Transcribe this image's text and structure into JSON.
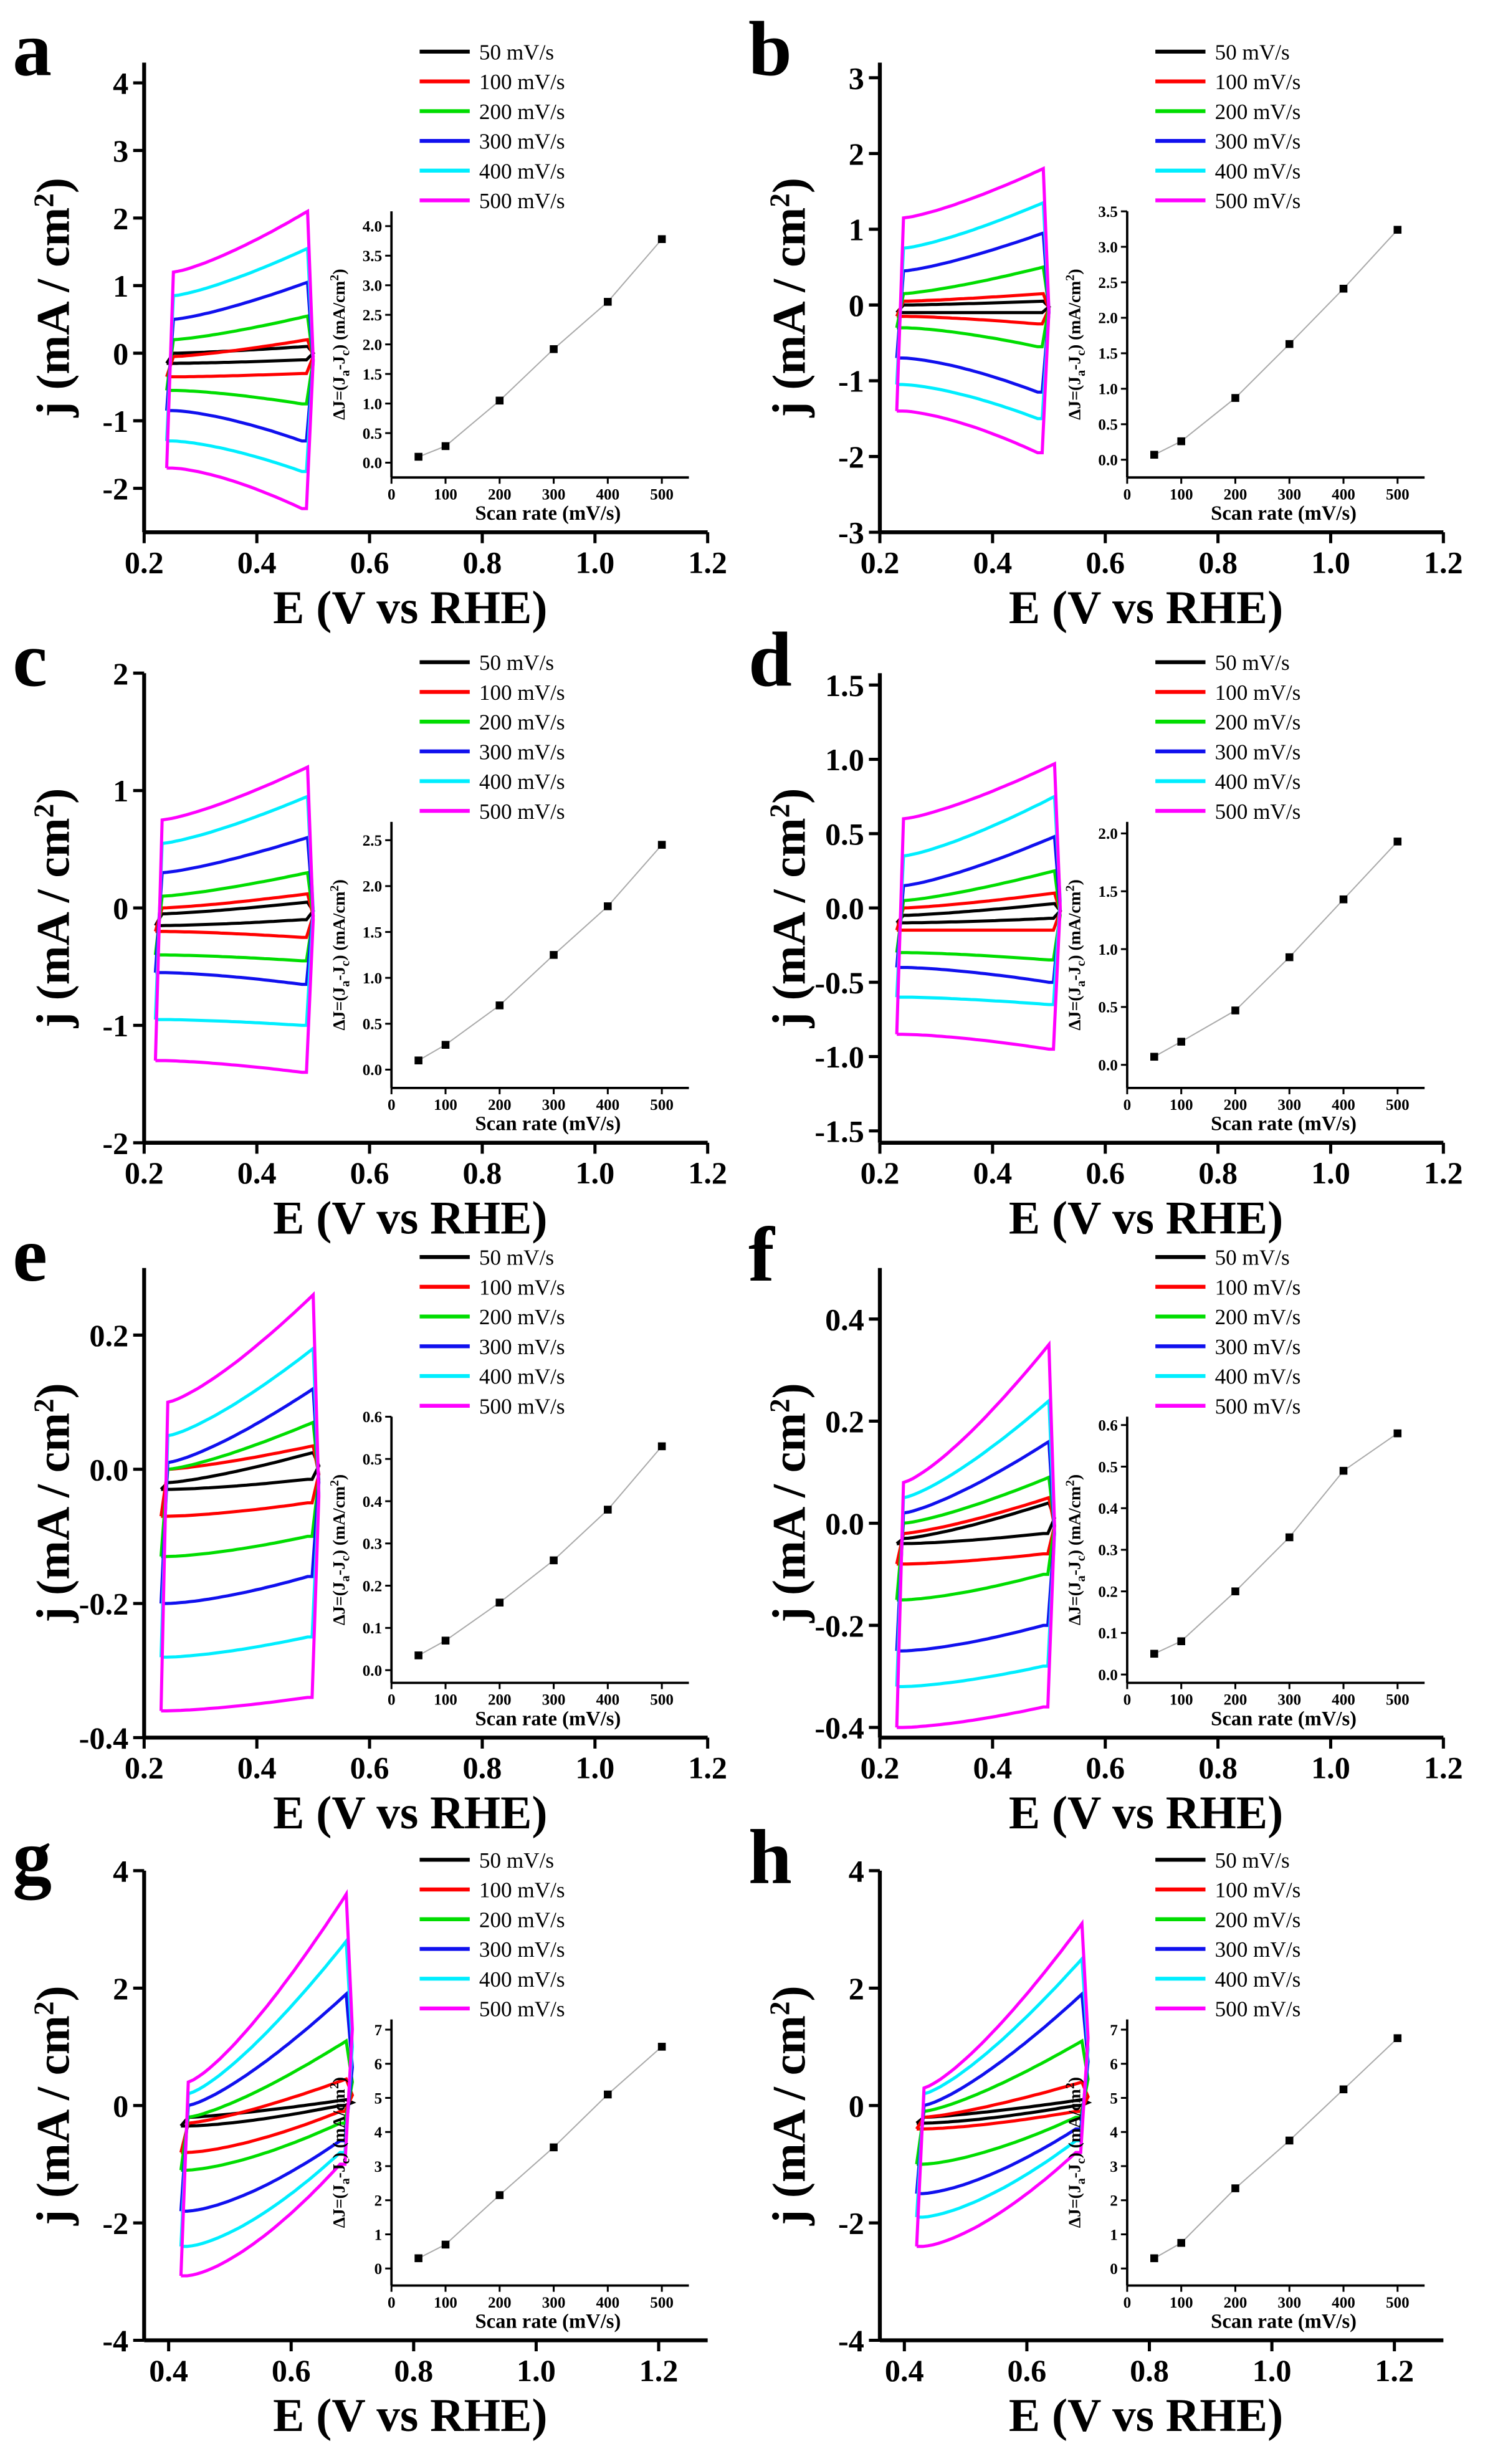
{
  "legend": [
    {
      "name": "50 mV/s",
      "color": "#000000"
    },
    {
      "name": "100 mV/s",
      "color": "#ff0000"
    },
    {
      "name": "200 mV/s",
      "color": "#00dd00"
    },
    {
      "name": "300 mV/s",
      "color": "#1010ee"
    },
    {
      "name": "400 mV/s",
      "color": "#00eeff"
    },
    {
      "name": "500 mV/s",
      "color": "#ff00ff"
    }
  ],
  "ylabel_parts": [
    "j (mA / cm",
    "2",
    ")"
  ],
  "xlabel": "E (V vs RHE)",
  "inset_xlabel": "Scan rate (mV/s)",
  "inset_ylabel_parts": [
    "ΔJ=(J",
    "a",
    "-J",
    "c",
    ") (mA/cm",
    "2",
    ")"
  ],
  "chart_data": [
    {
      "panel": "a",
      "type": "line",
      "xlim": [
        0.2,
        1.2
      ],
      "ylim": [
        -2.65,
        4.3
      ],
      "xticks": [
        "0.2",
        "0.4",
        "0.6",
        "0.8",
        "1.0",
        "1.2"
      ],
      "yticks": [
        "-2",
        "-1",
        "0",
        "1",
        "2",
        "3",
        "4"
      ],
      "E_range": [
        0.24,
        0.5
      ],
      "cv_ja_start_end_jc_start_end": [
        [
          0.0,
          0.1,
          -0.15,
          -0.1
        ],
        [
          -0.05,
          0.2,
          -0.35,
          -0.3
        ],
        [
          0.2,
          0.55,
          -0.55,
          -0.75
        ],
        [
          0.5,
          1.05,
          -0.85,
          -1.3
        ],
        [
          0.85,
          1.55,
          -1.3,
          -1.75
        ],
        [
          1.2,
          2.1,
          -1.7,
          -2.3
        ]
      ],
      "inset": {
        "type": "line",
        "x": [
          50,
          100,
          200,
          300,
          400,
          500
        ],
        "y": [
          0.1,
          0.28,
          1.05,
          1.92,
          2.72,
          3.78
        ],
        "xlim": [
          0,
          550
        ],
        "ylim": [
          -0.25,
          4.25
        ],
        "xticks": [
          "0",
          "100",
          "200",
          "300",
          "400",
          "500"
        ],
        "yticks": [
          "0.0",
          "0.5",
          "1.0",
          "1.5",
          "2.0",
          "2.5",
          "3.0",
          "3.5",
          "4.0"
        ]
      }
    },
    {
      "panel": "b",
      "type": "line",
      "xlim": [
        0.2,
        1.2
      ],
      "ylim": [
        -3.0,
        3.2
      ],
      "xticks": [
        "0.2",
        "0.4",
        "0.6",
        "0.8",
        "1.0",
        "1.2"
      ],
      "yticks": [
        "-3",
        "-2",
        "-1",
        "0",
        "1",
        "2",
        "3"
      ],
      "E_range": [
        0.23,
        0.5
      ],
      "cv_ja_start_end_jc_start_end": [
        [
          0.0,
          0.05,
          -0.1,
          -0.1
        ],
        [
          0.05,
          0.15,
          -0.15,
          -0.25
        ],
        [
          0.15,
          0.5,
          -0.3,
          -0.55
        ],
        [
          0.45,
          0.95,
          -0.7,
          -1.15
        ],
        [
          0.75,
          1.35,
          -1.05,
          -1.5
        ],
        [
          1.15,
          1.8,
          -1.4,
          -1.95
        ]
      ],
      "inset": {
        "type": "line",
        "x": [
          50,
          100,
          200,
          300,
          400,
          500
        ],
        "y": [
          0.07,
          0.26,
          0.87,
          1.63,
          2.41,
          3.24
        ],
        "xlim": [
          0,
          550
        ],
        "ylim": [
          -0.25,
          3.5
        ],
        "xticks": [
          "0",
          "100",
          "200",
          "300",
          "400",
          "500"
        ],
        "yticks": [
          "0.0",
          "0.5",
          "1.0",
          "1.5",
          "2.0",
          "2.5",
          "3.0",
          "3.5"
        ]
      }
    },
    {
      "panel": "c",
      "type": "line",
      "xlim": [
        0.2,
        1.2
      ],
      "ylim": [
        -2.0,
        2.0
      ],
      "xticks": [
        "0.2",
        "0.4",
        "0.6",
        "0.8",
        "1.0",
        "1.2"
      ],
      "yticks": [
        "-2",
        "-1",
        "0",
        "1",
        "2"
      ],
      "E_range": [
        0.22,
        0.5
      ],
      "cv_ja_start_end_jc_start_end": [
        [
          -0.05,
          0.05,
          -0.15,
          -0.1
        ],
        [
          0.0,
          0.12,
          -0.2,
          -0.25
        ],
        [
          0.1,
          0.3,
          -0.4,
          -0.45
        ],
        [
          0.3,
          0.6,
          -0.55,
          -0.65
        ],
        [
          0.55,
          0.95,
          -0.95,
          -1.0
        ],
        [
          0.75,
          1.2,
          -1.3,
          -1.4
        ]
      ],
      "inset": {
        "type": "line",
        "x": [
          50,
          100,
          200,
          300,
          400,
          500
        ],
        "y": [
          0.1,
          0.27,
          0.7,
          1.25,
          1.78,
          2.45
        ],
        "xlim": [
          0,
          550
        ],
        "ylim": [
          -0.2,
          2.7
        ],
        "xticks": [
          "0",
          "100",
          "200",
          "300",
          "400",
          "500"
        ],
        "yticks": [
          "0.0",
          "0.5",
          "1.0",
          "1.5",
          "2.0",
          "2.5"
        ]
      }
    },
    {
      "panel": "d",
      "type": "line",
      "xlim": [
        0.2,
        1.2
      ],
      "ylim": [
        -1.58,
        1.58
      ],
      "xticks": [
        "0.2",
        "0.4",
        "0.6",
        "0.8",
        "1.0",
        "1.2"
      ],
      "yticks": [
        "-1.5",
        "-1.0",
        "-0.5",
        "0.0",
        "0.5",
        "1.0",
        "1.5"
      ],
      "E_range": [
        0.23,
        0.52
      ],
      "cv_ja_start_end_jc_start_end": [
        [
          -0.05,
          0.03,
          -0.1,
          -0.07
        ],
        [
          0.0,
          0.1,
          -0.15,
          -0.15
        ],
        [
          0.05,
          0.25,
          -0.3,
          -0.35
        ],
        [
          0.15,
          0.48,
          -0.4,
          -0.5
        ],
        [
          0.35,
          0.75,
          -0.6,
          -0.65
        ],
        [
          0.6,
          0.97,
          -0.85,
          -0.95
        ]
      ],
      "inset": {
        "type": "line",
        "x": [
          50,
          100,
          200,
          300,
          400,
          500
        ],
        "y": [
          0.07,
          0.2,
          0.47,
          0.93,
          1.43,
          1.93
        ],
        "xlim": [
          0,
          550
        ],
        "ylim": [
          -0.2,
          2.1
        ],
        "xticks": [
          "0",
          "100",
          "200",
          "300",
          "400",
          "500"
        ],
        "yticks": [
          "0.0",
          "0.5",
          "1.0",
          "1.5",
          "2.0"
        ]
      }
    },
    {
      "panel": "e",
      "type": "line",
      "xlim": [
        0.2,
        1.2
      ],
      "ylim": [
        -0.4,
        0.3
      ],
      "xticks": [
        "0.2",
        "0.4",
        "0.6",
        "0.8",
        "1.0",
        "1.2"
      ],
      "yticks": [
        "-0.4",
        "-0.2",
        "0.0",
        "0.2"
      ],
      "E_range": [
        0.23,
        0.51
      ],
      "cv_ja_start_end_jc_start_end": [
        [
          -0.02,
          0.025,
          -0.03,
          -0.015
        ],
        [
          0.0,
          0.035,
          -0.07,
          -0.05
        ],
        [
          0.0,
          0.07,
          -0.13,
          -0.1
        ],
        [
          0.01,
          0.12,
          -0.2,
          -0.16
        ],
        [
          0.05,
          0.18,
          -0.28,
          -0.25
        ],
        [
          0.1,
          0.26,
          -0.36,
          -0.34
        ]
      ],
      "inset": {
        "type": "line",
        "x": [
          50,
          100,
          200,
          300,
          400,
          500
        ],
        "y": [
          0.035,
          0.07,
          0.16,
          0.26,
          0.38,
          0.53
        ],
        "xlim": [
          0,
          550
        ],
        "ylim": [
          -0.03,
          0.6
        ],
        "xticks": [
          "0",
          "100",
          "200",
          "300",
          "400",
          "500"
        ],
        "yticks": [
          "0.0",
          "0.1",
          "0.2",
          "0.3",
          "0.4",
          "0.5",
          "0.6"
        ]
      }
    },
    {
      "panel": "f",
      "type": "line",
      "xlim": [
        0.2,
        1.2
      ],
      "ylim": [
        -0.42,
        0.5
      ],
      "xticks": [
        "0.2",
        "0.4",
        "0.6",
        "0.8",
        "1.0",
        "1.2"
      ],
      "yticks": [
        "-0.4",
        "-0.2",
        "0.0",
        "0.2",
        "0.4"
      ],
      "E_range": [
        0.23,
        0.51
      ],
      "cv_ja_start_end_jc_start_end": [
        [
          -0.03,
          0.04,
          -0.04,
          -0.02
        ],
        [
          -0.02,
          0.05,
          -0.08,
          -0.06
        ],
        [
          0.0,
          0.09,
          -0.15,
          -0.1
        ],
        [
          0.02,
          0.16,
          -0.25,
          -0.2
        ],
        [
          0.05,
          0.24,
          -0.32,
          -0.28
        ],
        [
          0.08,
          0.35,
          -0.4,
          -0.36
        ]
      ],
      "inset": {
        "type": "line",
        "x": [
          50,
          100,
          200,
          300,
          400,
          500
        ],
        "y": [
          0.05,
          0.08,
          0.2,
          0.33,
          0.49,
          0.58
        ],
        "xlim": [
          0,
          550
        ],
        "ylim": [
          -0.02,
          0.62
        ],
        "xticks": [
          "0",
          "100",
          "200",
          "300",
          "400",
          "500"
        ],
        "yticks": [
          "0.0",
          "0.1",
          "0.2",
          "0.3",
          "0.4",
          "0.5",
          "0.6"
        ]
      }
    },
    {
      "panel": "g",
      "type": "line",
      "xlim": [
        0.36,
        1.28
      ],
      "ylim": [
        -4.0,
        4.0
      ],
      "xticks": [
        "0.4",
        "0.6",
        "0.8",
        "1.0",
        "1.2"
      ],
      "yticks": [
        "-4",
        "-2",
        "0",
        "2",
        "4"
      ],
      "E_range": [
        0.42,
        0.7
      ],
      "cv_ja_start_end_jc_start_end": [
        [
          -0.2,
          0.1,
          -0.35,
          0.0
        ],
        [
          -0.3,
          0.45,
          -0.8,
          -0.1
        ],
        [
          -0.2,
          1.1,
          -1.1,
          -0.3
        ],
        [
          0.0,
          1.9,
          -1.8,
          -0.6
        ],
        [
          0.2,
          2.8,
          -2.4,
          -0.8
        ],
        [
          0.4,
          3.6,
          -2.9,
          -1.0
        ]
      ],
      "inset": {
        "type": "line",
        "x": [
          50,
          100,
          200,
          300,
          400,
          500
        ],
        "y": [
          0.3,
          0.7,
          2.15,
          3.55,
          5.1,
          6.5
        ],
        "xlim": [
          0,
          550
        ],
        "ylim": [
          -0.5,
          7.3
        ],
        "xticks": [
          "0",
          "100",
          "200",
          "300",
          "400",
          "500"
        ],
        "yticks": [
          "0",
          "1",
          "2",
          "3",
          "4",
          "5",
          "6",
          "7"
        ]
      }
    },
    {
      "panel": "h",
      "type": "line",
      "xlim": [
        0.36,
        1.28
      ],
      "ylim": [
        -4.0,
        4.0
      ],
      "xticks": [
        "0.4",
        "0.6",
        "0.8",
        "1.0",
        "1.2"
      ],
      "yticks": [
        "-4",
        "-2",
        "0",
        "2",
        "4"
      ],
      "E_range": [
        0.42,
        0.7
      ],
      "cv_ja_start_end_jc_start_end": [
        [
          -0.2,
          0.1,
          -0.3,
          0.0
        ],
        [
          -0.2,
          0.4,
          -0.4,
          -0.1
        ],
        [
          -0.1,
          1.1,
          -1.0,
          -0.2
        ],
        [
          0.0,
          1.9,
          -1.5,
          -0.4
        ],
        [
          0.2,
          2.5,
          -1.9,
          -0.6
        ],
        [
          0.3,
          3.1,
          -2.4,
          -0.8
        ]
      ],
      "inset": {
        "type": "line",
        "x": [
          50,
          100,
          200,
          300,
          400,
          500
        ],
        "y": [
          0.3,
          0.75,
          2.35,
          3.75,
          5.25,
          6.75
        ],
        "xlim": [
          0,
          550
        ],
        "ylim": [
          -0.5,
          7.3
        ],
        "xticks": [
          "0",
          "100",
          "200",
          "300",
          "400",
          "500"
        ],
        "yticks": [
          "0",
          "1",
          "2",
          "3",
          "4",
          "5",
          "6",
          "7"
        ]
      }
    }
  ]
}
